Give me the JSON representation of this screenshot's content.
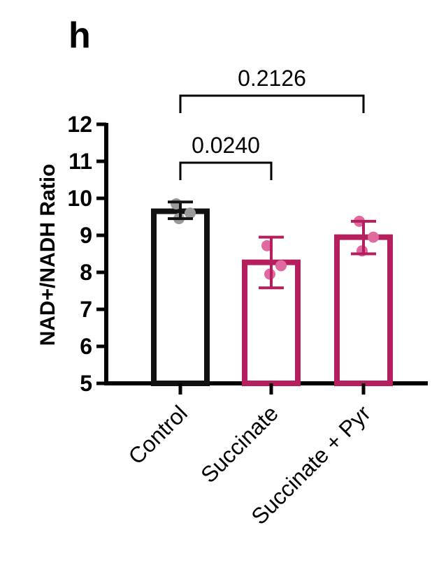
{
  "panel_label": "h",
  "colors": {
    "control": "#111111",
    "succinate": "#b51f5e",
    "point_control": "#9a9a9a",
    "point_succinate": "#e06aa0"
  },
  "chart_data": {
    "type": "bar",
    "title": "",
    "xlabel": "",
    "ylabel": "NAD+/NADH Ratio",
    "ylim": [
      5,
      12
    ],
    "yticks": [
      5,
      6,
      7,
      8,
      9,
      10,
      11,
      12
    ],
    "grid": false,
    "categories": [
      "Control",
      "Succinate",
      "Succinate + Pyr"
    ],
    "values": [
      9.65,
      8.27,
      8.95
    ],
    "error": [
      {
        "low": 9.45,
        "high": 9.9
      },
      {
        "low": 7.58,
        "high": 8.95
      },
      {
        "low": 8.5,
        "high": 9.38
      }
    ],
    "points": [
      [
        9.85,
        9.6,
        9.45
      ],
      [
        8.72,
        8.18,
        7.95
      ],
      [
        9.38,
        8.95,
        8.58
      ]
    ],
    "comparisons": [
      {
        "from": 0,
        "to": 1,
        "label": "0.0240"
      },
      {
        "from": 0,
        "to": 2,
        "label": "0.2126"
      }
    ]
  }
}
